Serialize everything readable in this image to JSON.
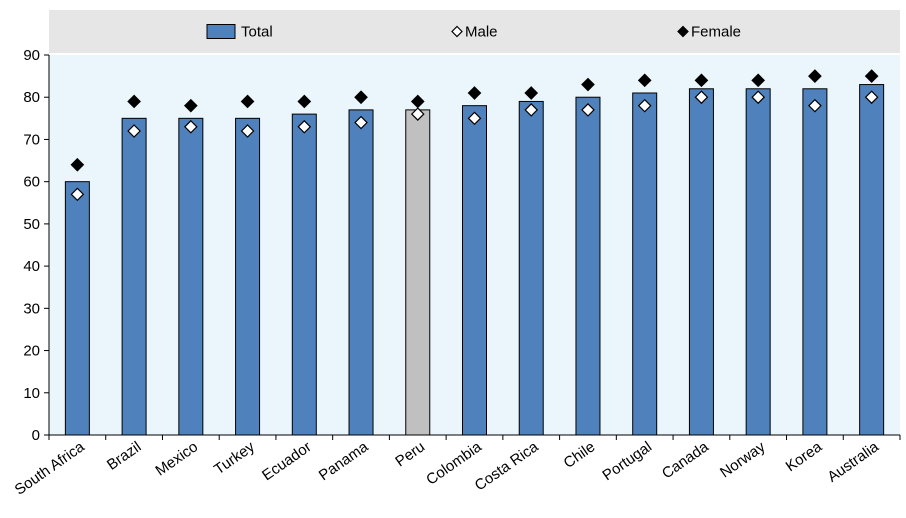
{
  "chart_data": {
    "type": "bar",
    "title": "",
    "xlabel": "",
    "ylabel": "",
    "ylim": [
      0,
      90
    ],
    "yticks": [
      0,
      10,
      20,
      30,
      40,
      50,
      60,
      70,
      80,
      90
    ],
    "categories": [
      "South Africa",
      "Brazil",
      "Mexico",
      "Turkey",
      "Ecuador",
      "Panama",
      "Peru",
      "Colombia",
      "Costa Rica",
      "Chile",
      "Portugal",
      "Canada",
      "Norway",
      "Korea",
      "Australia"
    ],
    "highlight_category": "Peru",
    "series": [
      {
        "name": "Total",
        "kind": "bar",
        "values": [
          60,
          75,
          75,
          75,
          76,
          77,
          77,
          78,
          79,
          80,
          81,
          82,
          82,
          82,
          83
        ]
      },
      {
        "name": "Male",
        "kind": "marker",
        "marker": "hollow-diamond",
        "values": [
          57,
          72,
          73,
          72,
          73,
          74,
          76,
          75,
          77,
          77,
          78,
          80,
          80,
          78,
          80
        ]
      },
      {
        "name": "Female",
        "kind": "marker",
        "marker": "filled-diamond",
        "values": [
          64,
          79,
          78,
          79,
          79,
          80,
          79,
          81,
          81,
          83,
          84,
          84,
          84,
          85,
          85
        ]
      }
    ],
    "legend_position": "top",
    "grid": false,
    "colors": {
      "bar": "#4f81bd",
      "bar_highlight": "#c0c0c0",
      "plot_background": "#eaf6fb",
      "legend_background": "#e6e6e6",
      "marker": "#000000"
    }
  }
}
